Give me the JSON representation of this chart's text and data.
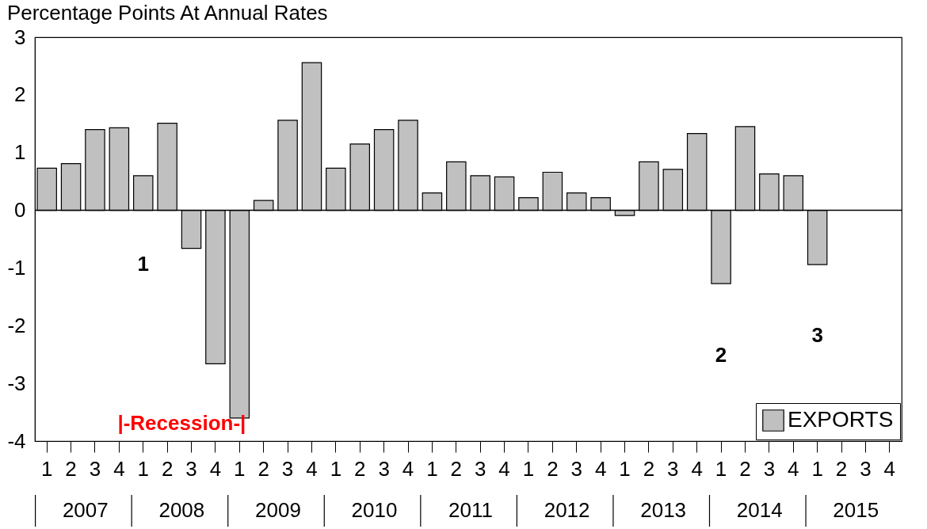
{
  "chart_data": {
    "type": "bar",
    "title": "Percentage Points At Annual Rates",
    "categories": [
      "1",
      "2",
      "3",
      "4",
      "1",
      "2",
      "3",
      "4",
      "1",
      "2",
      "3",
      "4",
      "1",
      "2",
      "3",
      "4",
      "1",
      "2",
      "3",
      "4",
      "1",
      "2",
      "3",
      "4",
      "1",
      "2",
      "3",
      "4",
      "1",
      "2",
      "3",
      "4",
      "1",
      "2",
      "3",
      "4"
    ],
    "series": [
      {
        "name": "EXPORTS",
        "color": "#c0c0c0",
        "values": [
          0.73,
          0.81,
          1.4,
          1.43,
          0.6,
          1.51,
          -0.66,
          -2.66,
          -3.6,
          0.17,
          1.56,
          2.56,
          0.73,
          1.15,
          1.4,
          1.56,
          0.3,
          0.84,
          0.6,
          0.58,
          0.22,
          0.66,
          0.3,
          0.22,
          -0.09,
          0.84,
          0.71,
          1.33,
          -1.27,
          1.45,
          0.63,
          0.6,
          -0.94,
          null,
          null,
          null
        ]
      }
    ],
    "ylim": [
      -4,
      3
    ],
    "yticks": [
      -4,
      -3,
      -2,
      -1,
      0,
      1,
      2,
      3
    ],
    "legend": "bottom right",
    "ref_lines": [
      {
        "axis": "y",
        "value": 0
      }
    ],
    "annotations": [
      "|-Recession-|",
      "1",
      "2",
      "3",
      "2007",
      "2008",
      "2009",
      "2010",
      "2011",
      "2012",
      "2013",
      "2014",
      "2015"
    ]
  }
}
